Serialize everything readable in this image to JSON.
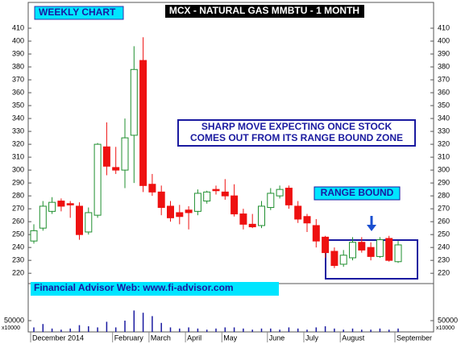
{
  "chart_data": {
    "type": "candlestick",
    "title": "MCX - NATURAL GAS MMBTU - 1 MONTH",
    "chart_label": "WEEKLY CHART",
    "annotation_lines": [
      "SHARP MOVE EXPECTING ONCE STOCK",
      "COMES OUT FROM ITS RANGE BOUND ZONE"
    ],
    "zone_label": "RANGE BOUND",
    "footer": "Financial Advisor Web: www.fi-advisor.com",
    "categories": [
      "December 2014",
      null,
      null,
      null,
      null,
      null,
      null,
      null,
      null,
      "February",
      null,
      null,
      null,
      "March",
      null,
      null,
      null,
      "April",
      null,
      null,
      null,
      "May",
      null,
      null,
      null,
      null,
      "June",
      null,
      null,
      null,
      "July",
      null,
      null,
      null,
      "August",
      null,
      null,
      null,
      null,
      null,
      "September"
    ],
    "open": [
      245,
      255,
      268,
      276,
      274,
      272,
      252,
      265,
      318,
      302,
      300,
      327,
      385,
      289,
      283,
      272,
      267,
      269,
      268,
      276,
      285,
      283,
      280,
      266,
      258,
      257,
      271,
      280,
      286,
      272,
      264,
      257,
      248,
      237,
      227,
      232,
      244,
      240,
      233,
      247,
      229
    ],
    "high": [
      258,
      276,
      279,
      278,
      276,
      275,
      271,
      321,
      337,
      318,
      340,
      396,
      403,
      297,
      288,
      276,
      273,
      272,
      285,
      284,
      288,
      293,
      289,
      270,
      266,
      276,
      286,
      288,
      288,
      276,
      266,
      262,
      249,
      240,
      238,
      248,
      248,
      244,
      248,
      249,
      245
    ],
    "low": [
      243,
      253,
      266,
      268,
      263,
      246,
      250,
      263,
      296,
      297,
      286,
      290,
      283,
      280,
      265,
      260,
      258,
      254,
      265,
      274,
      281,
      277,
      264,
      254,
      255,
      255,
      269,
      278,
      270,
      259,
      252,
      240,
      232,
      224,
      225,
      230,
      236,
      230,
      232,
      229,
      228
    ],
    "close": [
      253,
      272,
      275,
      272,
      273,
      250,
      267,
      320,
      303,
      300,
      325,
      378,
      288,
      283,
      271,
      263,
      264,
      267,
      282,
      283,
      284,
      280,
      266,
      258,
      256,
      272,
      282,
      285,
      273,
      262,
      259,
      245,
      236,
      226,
      234,
      244,
      238,
      233,
      246,
      230,
      242
    ],
    "volume": [
      20000,
      35000,
      15000,
      10000,
      15000,
      30000,
      25000,
      20000,
      45000,
      20000,
      50000,
      95000,
      85000,
      70000,
      40000,
      20000,
      15000,
      20000,
      15000,
      10000,
      15000,
      20000,
      20000,
      15000,
      10000,
      15000,
      15000,
      10000,
      20000,
      15000,
      10000,
      20000,
      25000,
      15000,
      10000,
      15000,
      10000,
      10000,
      15000,
      10000,
      15000
    ],
    "up_color": "#1f8f2f",
    "down_color": "#ee1111",
    "ylim": [
      212,
      430
    ],
    "yticks": [
      220,
      230,
      240,
      250,
      260,
      270,
      280,
      290,
      300,
      310,
      320,
      330,
      340,
      350,
      360,
      370,
      380,
      390,
      400,
      410
    ],
    "volume_ylim": [
      0,
      200000
    ],
    "volume_yticks": [
      50000
    ],
    "volume_unit": "x10000"
  }
}
